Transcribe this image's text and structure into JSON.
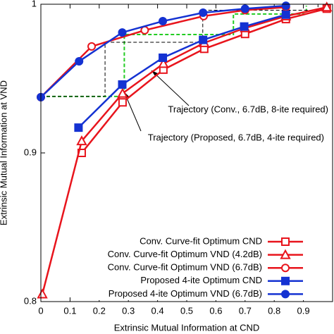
{
  "chart_data": {
    "type": "line",
    "xlabel": "Extrinsic Mutual Information at CND",
    "ylabel": "Extrinsic Mutual Information at VND",
    "xlim": [
      0,
      1
    ],
    "ylim": [
      0.8,
      1
    ],
    "xticks": [
      0,
      0.1,
      0.2,
      0.3,
      0.4,
      0.5,
      0.6,
      0.7,
      0.8,
      0.9
    ],
    "yticks": [
      0.8,
      0.9,
      1
    ],
    "legend": "lower right",
    "series": [
      {
        "name": "Conv. Curve-fit Optimum CND",
        "color": "#e8141c",
        "marker": "square",
        "x": [
          0.14,
          0.28,
          0.42,
          0.56,
          0.7,
          0.84,
          0.98
        ],
        "values": [
          0.9,
          0.934,
          0.956,
          0.97,
          0.98,
          0.99,
          0.997
        ]
      },
      {
        "name": "Conv. Curve-fit Optimum VND (4.2dB)",
        "color": "#e8141c",
        "marker": "triangle",
        "x": [
          0.005,
          0.14,
          0.28,
          0.42,
          0.56,
          0.7,
          0.84,
          0.98
        ],
        "values": [
          0.805,
          0.908,
          0.94,
          0.96,
          0.974,
          0.984,
          0.992,
          0.998
        ]
      },
      {
        "name": "Conv. Curve-fit Optimum VND (6.7dB)",
        "color": "#e8141c",
        "marker": "circle",
        "x": [
          0,
          0.174,
          0.356,
          0.558,
          0.7,
          0.84
        ],
        "values": [
          0.9375,
          0.9716,
          0.9825,
          0.992,
          0.996,
          0.998
        ]
      },
      {
        "name": "Proposed 4-ite Optimum CND",
        "color": "#1432d2",
        "marker": "filled-square",
        "x": [
          0.129,
          0.279,
          0.418,
          0.556,
          0.697,
          0.84
        ],
        "values": [
          0.917,
          0.946,
          0.964,
          0.976,
          0.985,
          0.993
        ]
      },
      {
        "name": "Proposed 4-ite Optimum VND (6.7dB)",
        "color": "#1432d2",
        "marker": "filled-circle",
        "x": [
          0,
          0.131,
          0.279,
          0.418,
          0.556,
          0.7,
          0.84
        ],
        "values": [
          0.9375,
          0.9616,
          0.981,
          0.9886,
          0.9943,
          0.997,
          0.999
        ]
      }
    ],
    "trajectories": [
      {
        "color": "#22cc22",
        "x": [
          0,
          0.286,
          0.286,
          0.66,
          0.66,
          0.91,
          0.91
        ],
        "values": [
          0.938,
          0.938,
          0.9796,
          0.9796,
          0.9934,
          0.9934,
          0.999
        ]
      },
      {
        "color": "#000000",
        "x": [
          0,
          0.22,
          0.22,
          0.555,
          0.555,
          0.95,
          0.95
        ],
        "values": [
          0.938,
          0.938,
          0.9744,
          0.9744,
          0.996,
          0.996,
          1
        ]
      }
    ],
    "annotations": [
      "Trajectory (Conv., 6.7dB, 8-ite required)",
      "Trajectory (Proposed, 6.7dB, 4-ite required)"
    ]
  }
}
